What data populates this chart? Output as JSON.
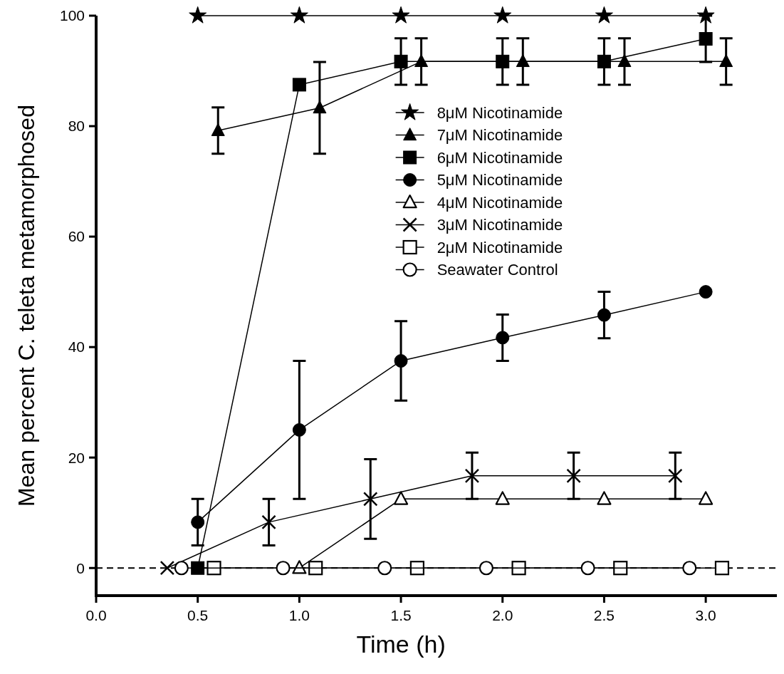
{
  "chart_data": {
    "type": "line",
    "xlabel": "Time (h)",
    "ylabel": "Mean percent C. teleta metamorphosed",
    "xlim": [
      0,
      3.35
    ],
    "xticks": [
      {
        "value": 0,
        "label": "0.0"
      },
      {
        "value": 0.5,
        "label": "0.5"
      },
      {
        "value": 1,
        "label": "1.0"
      },
      {
        "value": 1.5,
        "label": "1.5"
      },
      {
        "value": 2,
        "label": "2.0"
      },
      {
        "value": 2.5,
        "label": "2.5"
      },
      {
        "value": 3,
        "label": "3.0"
      }
    ],
    "ylim": [
      -5,
      100
    ],
    "yticks": [
      0,
      20,
      40,
      60,
      80,
      100
    ],
    "grid": false,
    "legend": "top",
    "line_style": "solid",
    "ref_lines": [
      {
        "axis": "y",
        "value": 0,
        "color": "#000000",
        "line_style": "dashed"
      }
    ],
    "series": [
      {
        "name": "8μM Nicotinamide",
        "color": "#000000",
        "marker": "star",
        "x": [
          0.5,
          1,
          1.5,
          2,
          2.5,
          3
        ],
        "values": [
          100,
          100,
          100,
          100,
          100,
          100
        ]
      },
      {
        "name": "7μM Nicotinamide",
        "color": "#000000",
        "marker": "triangle",
        "x": [
          0.6,
          1.1,
          1.6,
          2.1,
          2.6,
          3.1
        ],
        "values": [
          79.2,
          83.3,
          91.7,
          91.7,
          91.7,
          91.7
        ],
        "errors": [
          4.2,
          8.3,
          4.2,
          4.2,
          4.2,
          4.2
        ]
      },
      {
        "name": "6μM Nicotinamide",
        "color": "#000000",
        "marker": "square",
        "x": [
          0.5,
          1,
          1.5,
          2,
          2.5,
          3
        ],
        "values": [
          0,
          87.5,
          91.7,
          91.7,
          91.7,
          95.8
        ],
        "errors": [
          null,
          null,
          4.2,
          4.2,
          4.2,
          4.2
        ]
      },
      {
        "name": "5μM Nicotinamide",
        "color": "#000000",
        "marker": "circle",
        "x": [
          0.5,
          1,
          1.5,
          2,
          2.5,
          3
        ],
        "values": [
          8.3,
          25,
          37.5,
          41.7,
          45.8,
          50
        ],
        "errors": [
          4.2,
          12.5,
          7.2,
          4.2,
          4.2,
          null
        ]
      },
      {
        "name": "4μM Nicotinamide",
        "color": "#000000",
        "marker": "triangle-open",
        "x": [
          1,
          1.5,
          2,
          2.5,
          3
        ],
        "values": [
          0,
          12.5,
          12.5,
          12.5,
          12.5
        ]
      },
      {
        "name": "3μM Nicotinamide",
        "color": "#000000",
        "marker": "cross",
        "x": [
          0.35,
          0.85,
          1.35,
          1.85,
          2.35,
          2.85
        ],
        "values": [
          0,
          8.3,
          12.5,
          16.7,
          16.7,
          16.7
        ],
        "errors": [
          null,
          4.2,
          7.2,
          4.2,
          4.2,
          4.2
        ]
      },
      {
        "name": "2μM Nicotinamide",
        "color": "#000000",
        "marker": "square-open",
        "x": [
          0.58,
          1.08,
          1.58,
          2.08,
          2.58,
          3.08
        ],
        "values": [
          0,
          0,
          0,
          0,
          0,
          0
        ]
      },
      {
        "name": "Seawater Control",
        "color": "#000000",
        "marker": "circle-open",
        "x": [
          0.42,
          0.92,
          1.42,
          1.92,
          2.42,
          2.92
        ],
        "values": [
          0,
          0,
          0,
          0,
          0,
          0
        ]
      }
    ]
  }
}
